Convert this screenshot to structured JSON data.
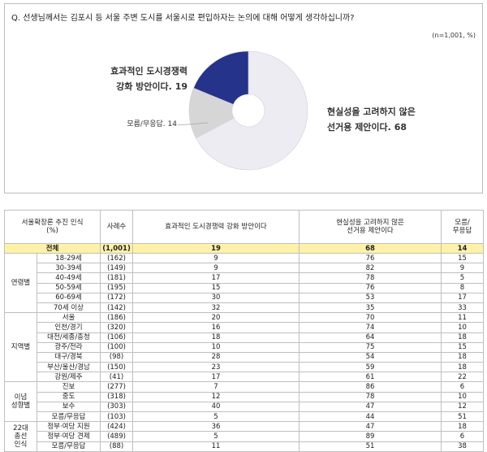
{
  "question": "Q. 선생님께서는 김포시 등 서울 주변 도시를 서울시로 편입하자는 논의에 대해 어떻게 생각하십니까?",
  "note": "(n=1,001, %)",
  "chart_data": {
    "type": "pie",
    "categories": [
      [
        "현실성을 고려하지 않은",
        "선거용 제안이다."
      ],
      [
        "모름/무응답."
      ],
      [
        "효과적인 도시경쟁력",
        "강화 방안이다."
      ]
    ],
    "values": [
      68,
      14,
      19
    ],
    "colors": [
      "#ececf2",
      "#d6d6d6",
      "#25338a"
    ]
  },
  "table": {
    "header": [
      [
        "서울확장론 추진 인식",
        "(%)"
      ],
      [
        "사례수"
      ],
      [
        "효과적인 도시경쟁력 강화 방안이다"
      ],
      [
        "현실성을 고려하지 않은",
        "선거용 제안이다"
      ],
      [
        "모름/",
        "무응답"
      ]
    ],
    "total": [
      "전체",
      "(1,001)",
      19,
      68,
      14
    ],
    "groups": [
      {
        "label": [
          "연령별"
        ],
        "rows": [
          [
            "18-29세",
            "(162)",
            9,
            76,
            15
          ],
          [
            "30-39세",
            "(149)",
            9,
            82,
            9
          ],
          [
            "40-49세",
            "(181)",
            17,
            78,
            5
          ],
          [
            "50-59세",
            "(195)",
            15,
            76,
            8
          ],
          [
            "60-69세",
            "(172)",
            30,
            53,
            17
          ],
          [
            "70세 이상",
            "(142)",
            32,
            35,
            33
          ]
        ]
      },
      {
        "label": [
          "지역별"
        ],
        "rows": [
          [
            "서울",
            "(186)",
            20,
            70,
            11
          ],
          [
            "인천/경기",
            "(320)",
            16,
            74,
            10
          ],
          [
            "대전/세종/충청",
            "(106)",
            18,
            64,
            18
          ],
          [
            "광주/전라",
            "(100)",
            10,
            75,
            15
          ],
          [
            "대구/경북",
            "(98)",
            28,
            54,
            18
          ],
          [
            "부산/울산/경남",
            "(150)",
            23,
            59,
            18
          ],
          [
            "강원/제주",
            "(41)",
            17,
            61,
            22
          ]
        ]
      },
      {
        "label": [
          "이념",
          "성향별"
        ],
        "rows": [
          [
            "진보",
            "(277)",
            7,
            86,
            6
          ],
          [
            "중도",
            "(318)",
            12,
            78,
            10
          ],
          [
            "보수",
            "(303)",
            40,
            47,
            12
          ],
          [
            "모름/무응답",
            "(103)",
            5,
            44,
            51
          ]
        ]
      },
      {
        "label": [
          "22대",
          "총선",
          "인식"
        ],
        "rows": [
          [
            "정부·여당 지원",
            "(424)",
            36,
            47,
            18
          ],
          [
            "정부·여당 견제",
            "(489)",
            5,
            89,
            6
          ],
          [
            "모름/무응답",
            "(88)",
            11,
            51,
            38
          ]
        ]
      }
    ]
  }
}
